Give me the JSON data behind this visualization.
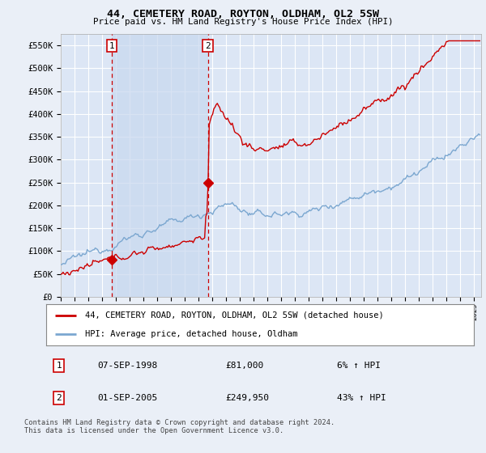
{
  "title": "44, CEMETERY ROAD, ROYTON, OLDHAM, OL2 5SW",
  "subtitle": "Price paid vs. HM Land Registry's House Price Index (HPI)",
  "ylabel_ticks": [
    "£0",
    "£50K",
    "£100K",
    "£150K",
    "£200K",
    "£250K",
    "£300K",
    "£350K",
    "£400K",
    "£450K",
    "£500K",
    "£550K"
  ],
  "ytick_values": [
    0,
    50000,
    100000,
    150000,
    200000,
    250000,
    300000,
    350000,
    400000,
    450000,
    500000,
    550000
  ],
  "ylim": [
    0,
    575000
  ],
  "xlim_start": 1995.0,
  "xlim_end": 2025.5,
  "background_color": "#eaeff7",
  "plot_bg_color": "#dce6f5",
  "shade_color": "#c8d8ee",
  "grid_color": "#ffffff",
  "sale1_date": 1998.69,
  "sale1_price": 81000,
  "sale1_label": "1",
  "sale2_date": 2005.67,
  "sale2_price": 249950,
  "sale2_label": "2",
  "legend_line1": "44, CEMETERY ROAD, ROYTON, OLDHAM, OL2 5SW (detached house)",
  "legend_line2": "HPI: Average price, detached house, Oldham",
  "table_row1": [
    "1",
    "07-SEP-1998",
    "£81,000",
    "6% ↑ HPI"
  ],
  "table_row2": [
    "2",
    "01-SEP-2005",
    "£249,950",
    "43% ↑ HPI"
  ],
  "footnote": "Contains HM Land Registry data © Crown copyright and database right 2024.\nThis data is licensed under the Open Government Licence v3.0.",
  "hpi_line_color": "#7ba7d0",
  "price_line_color": "#cc0000",
  "vline_color": "#cc0000"
}
